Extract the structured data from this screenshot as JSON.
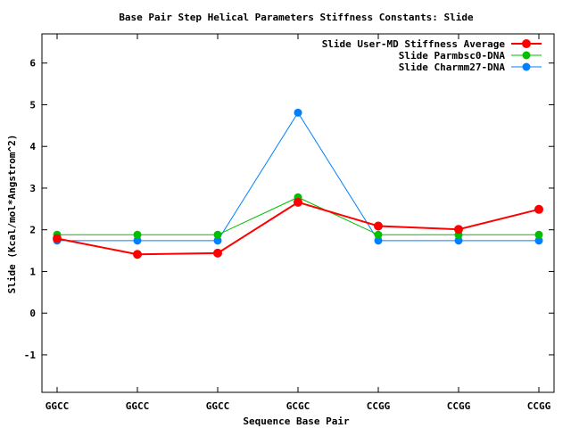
{
  "chart_data": {
    "type": "line",
    "title": "Base Pair Step Helical Parameters Stiffness Constants: Slide",
    "xlabel": "Sequence Base Pair",
    "ylabel": "Slide (Kcal/mol*Angstrom^2)",
    "categories": [
      "GGCC",
      "GGCC",
      "GGCC",
      "GCGC",
      "CCGG",
      "CCGG",
      "CCGG"
    ],
    "ylim": [
      -1.9,
      6.7
    ],
    "yticks": [
      -1,
      0,
      1,
      2,
      3,
      4,
      5,
      6
    ],
    "ytick_labels": [
      "-1",
      "0",
      "1",
      "2",
      "3",
      "4",
      "5",
      "6"
    ],
    "grid": false,
    "legend_position": "top-right",
    "series": [
      {
        "name": "Slide User-MD Stiffness Average",
        "color": "#ff0000",
        "values": [
          1.79,
          1.41,
          1.44,
          2.66,
          2.09,
          2.01,
          2.49
        ]
      },
      {
        "name": "Slide Parmbsc0-DNA",
        "color": "#00c000",
        "values": [
          1.88,
          1.88,
          1.88,
          2.78,
          1.88,
          1.88,
          1.88
        ]
      },
      {
        "name": "Slide Charmm27-DNA",
        "color": "#0080ff",
        "values": [
          1.74,
          1.74,
          1.74,
          4.81,
          1.74,
          1.74,
          1.74
        ]
      }
    ]
  }
}
